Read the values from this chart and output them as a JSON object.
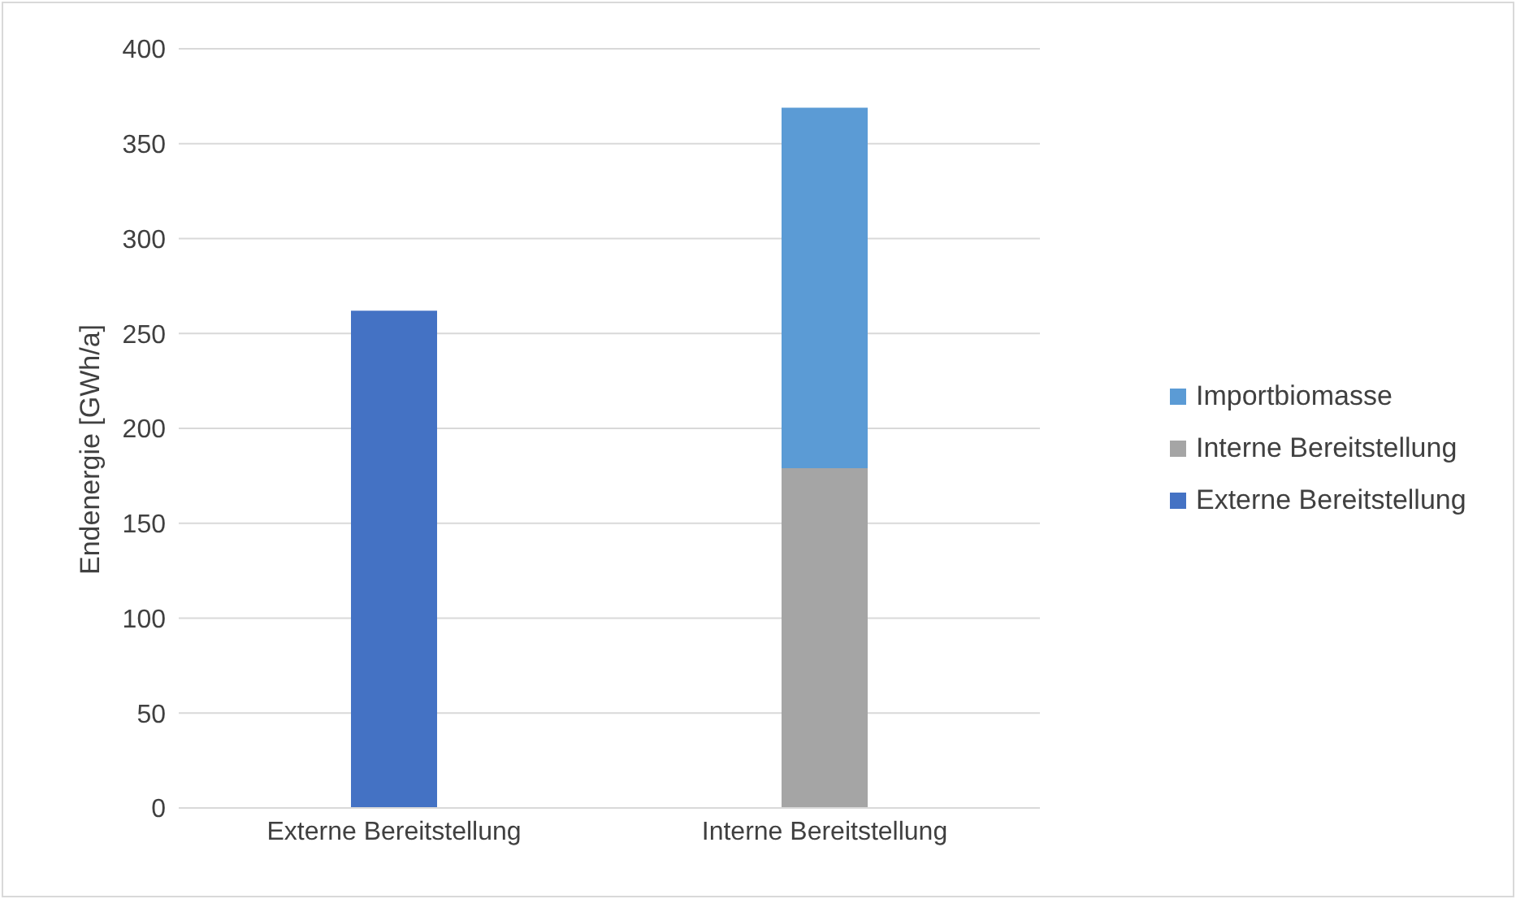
{
  "chart_data": {
    "type": "bar",
    "stacked": true,
    "ylabel": "Endenergie [GWh/a]",
    "categories": [
      "Externe Bereitstellung",
      "Interne Bereitstellung"
    ],
    "series": [
      {
        "name": "Externe Bereitstellung",
        "color": "#4472c4",
        "values": [
          262,
          null
        ]
      },
      {
        "name": "Interne Bereitstellung",
        "color": "#a5a5a5",
        "values": [
          null,
          179
        ]
      },
      {
        "name": "Importbiomasse",
        "color": "#5b9bd5",
        "values": [
          null,
          190
        ]
      }
    ],
    "ylim": [
      0,
      400
    ],
    "yticks": [
      0,
      50,
      100,
      150,
      200,
      250,
      300,
      350,
      400
    ],
    "grid": "y",
    "legend": "right"
  }
}
